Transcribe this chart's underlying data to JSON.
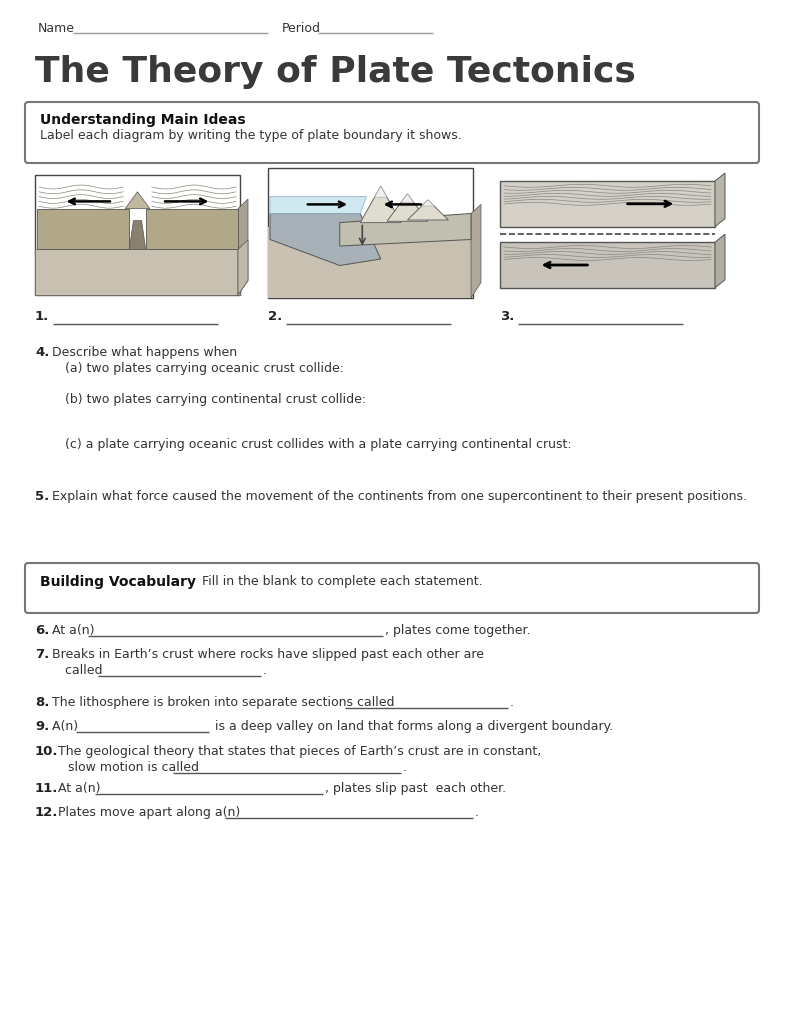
{
  "title": "The Theory of Plate Tectonics",
  "bg_color": "#ffffff",
  "text_color": "#333333",
  "section1_title": "Understanding Main Ideas",
  "section1_subtitle": "Label each diagram by writing the type of plate boundary it shows.",
  "section2_title": "Building Vocabulary",
  "section2_subtitle": "Fill in the blank to complete each statement."
}
